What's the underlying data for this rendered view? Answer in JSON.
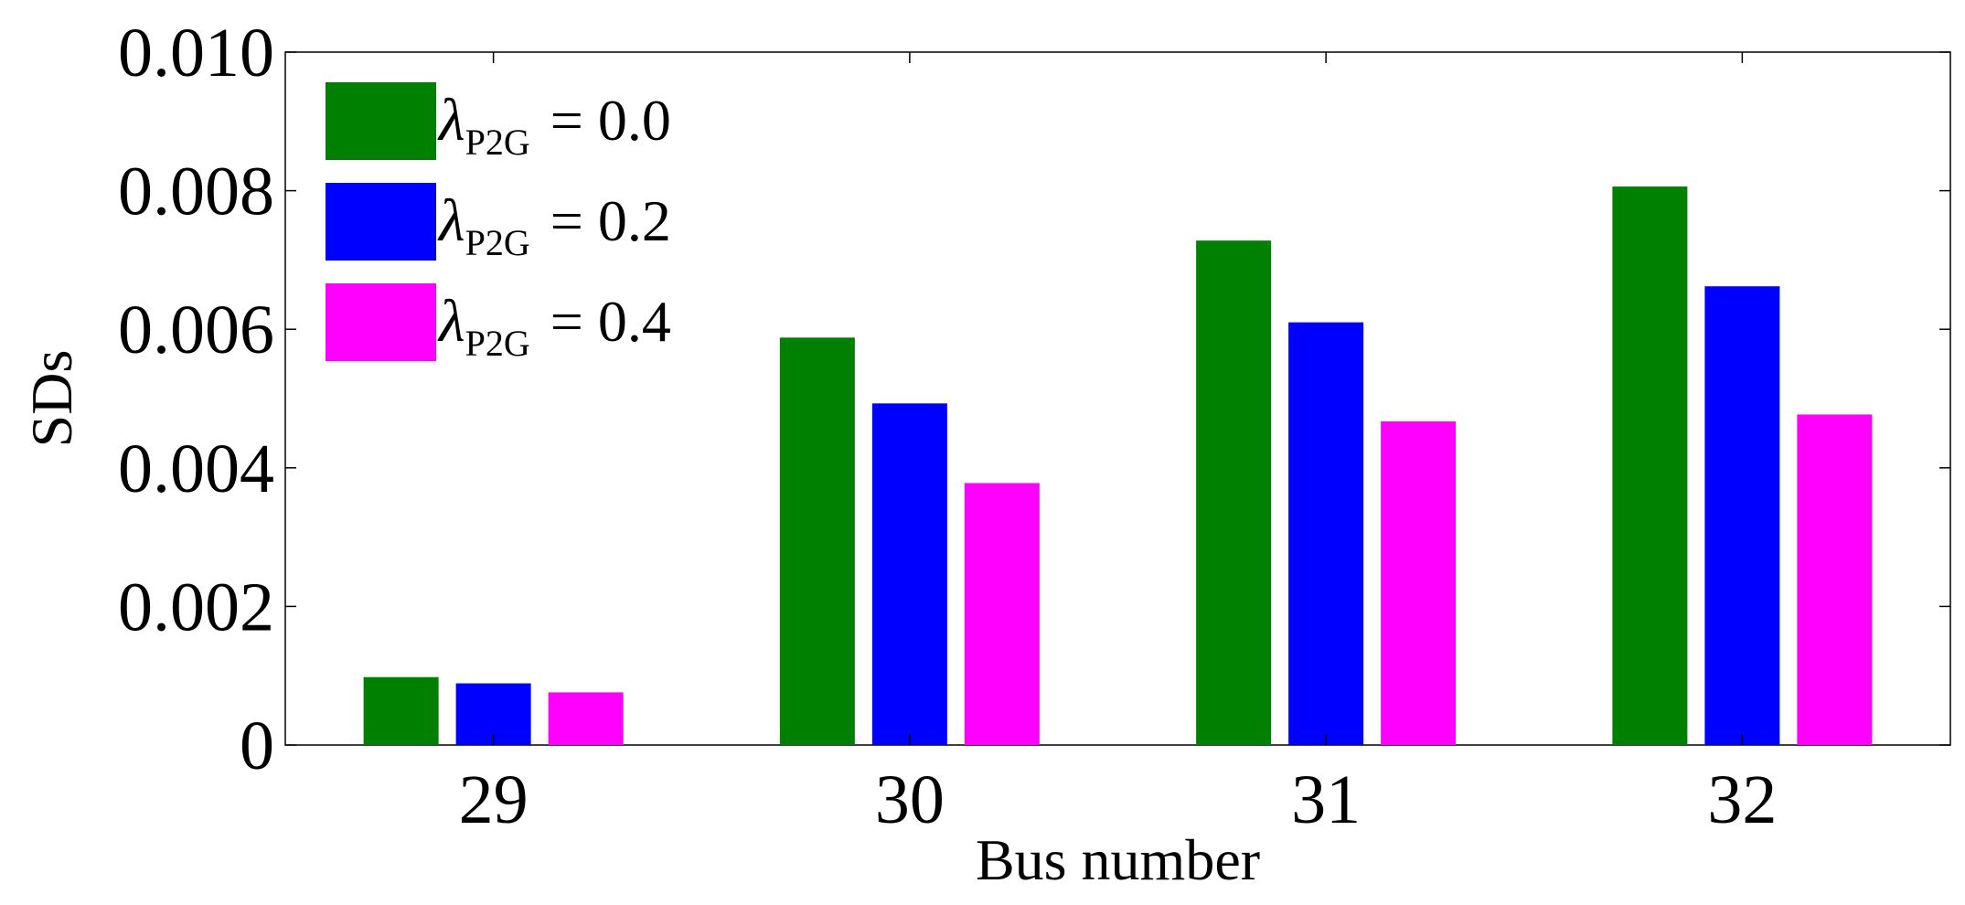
{
  "chart_data": {
    "type": "bar",
    "title": "",
    "xlabel": "Bus number",
    "ylabel": "SDs",
    "ylim": [
      0,
      0.01
    ],
    "yticks": [
      "0",
      "0.002",
      "0.004",
      "0.006",
      "0.008",
      "0.010"
    ],
    "ytick_values": [
      0,
      0.002,
      0.004,
      0.006,
      0.008,
      0.01
    ],
    "categories": [
      "29",
      "30",
      "31",
      "32"
    ],
    "series": [
      {
        "name": "λP2G = 0.0",
        "symbol": "λ",
        "subscript": "P2G",
        "equals_text": "= 0.0",
        "color": "#008000",
        "values": [
          0.00098,
          0.00588,
          0.00728,
          0.00806
        ]
      },
      {
        "name": "λP2G = 0.2",
        "symbol": "λ",
        "subscript": "P2G",
        "equals_text": "= 0.2",
        "color": "#0000ff",
        "values": [
          0.00089,
          0.00493,
          0.0061,
          0.00662
        ]
      },
      {
        "name": "λP2G = 0.4",
        "symbol": "λ",
        "subscript": "P2G",
        "equals_text": "= 0.4",
        "color": "#ff00ff",
        "values": [
          0.00076,
          0.00378,
          0.00467,
          0.00477
        ]
      }
    ],
    "grid": false,
    "legend_position": "top-left"
  }
}
